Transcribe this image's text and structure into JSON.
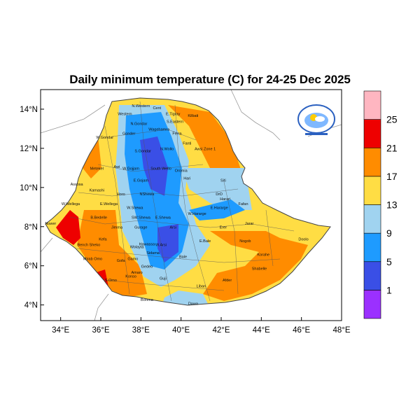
{
  "title": "Daily minimum temperature (C) for 24-25 Dec 2025",
  "map": {
    "lon_range": [
      33,
      48
    ],
    "lat_range": [
      3.2,
      15.0
    ],
    "x_ticks": [
      "34°E",
      "36°E",
      "38°E",
      "40°E",
      "42°E",
      "44°E",
      "46°E",
      "48°E"
    ],
    "y_ticks": [
      "14°N",
      "12°N",
      "10°N",
      "8°N",
      "6°N",
      "4°N"
    ]
  },
  "colorbar": {
    "labels": [
      "25",
      "21",
      "17",
      "13",
      "9",
      "5",
      "1"
    ],
    "colors": [
      "#9b30ff",
      "#3a4fe6",
      "#1e9bff",
      "#a0d3f0",
      "#ffdd44",
      "#ff8c00",
      "#ee0000",
      "#ffb6c1"
    ]
  },
  "regions": [
    {
      "name": "Western",
      "lon": 37.2,
      "lat": 13.7
    },
    {
      "name": "N.Western",
      "lon": 38.0,
      "lat": 14.1
    },
    {
      "name": "Cent",
      "lon": 38.8,
      "lat": 14.0
    },
    {
      "name": "E.Tigray",
      "lon": 39.6,
      "lat": 13.7
    },
    {
      "name": "S.Eastern",
      "lon": 39.7,
      "lat": 13.3
    },
    {
      "name": "N.Gondar",
      "lon": 37.9,
      "lat": 13.2
    },
    {
      "name": "Kilbati",
      "lon": 40.6,
      "lat": 13.6
    },
    {
      "name": "W.Gondar",
      "lon": 36.2,
      "lat": 12.5
    },
    {
      "name": "Gonder",
      "lon": 37.4,
      "lat": 12.7
    },
    {
      "name": "Wagehamra",
      "lon": 38.9,
      "lat": 12.9
    },
    {
      "name": "Ferra",
      "lon": 39.8,
      "lat": 12.7
    },
    {
      "name": "Fanti",
      "lon": 40.3,
      "lat": 12.2
    },
    {
      "name": "S.Gondar",
      "lon": 38.1,
      "lat": 11.8
    },
    {
      "name": "N.Wollo",
      "lon": 39.3,
      "lat": 11.9
    },
    {
      "name": "Awsi Zone 1",
      "lon": 41.2,
      "lat": 11.9
    },
    {
      "name": "Metekel",
      "lon": 35.8,
      "lat": 10.9
    },
    {
      "name": "Awi",
      "lon": 36.8,
      "lat": 11.0
    },
    {
      "name": "W.Gojjam",
      "lon": 37.5,
      "lat": 10.9
    },
    {
      "name": "South Wello",
      "lon": 39.0,
      "lat": 10.9
    },
    {
      "name": "Oromia",
      "lon": 40.0,
      "lat": 10.8
    },
    {
      "name": "E.Gojam",
      "lon": 38.0,
      "lat": 10.3
    },
    {
      "name": "Hari",
      "lon": 40.3,
      "lat": 10.4
    },
    {
      "name": "Siti",
      "lon": 42.1,
      "lat": 10.3
    },
    {
      "name": "Assosa",
      "lon": 34.8,
      "lat": 10.1
    },
    {
      "name": "Kamashi",
      "lon": 35.8,
      "lat": 9.8
    },
    {
      "name": "Horo",
      "lon": 37.0,
      "lat": 9.6
    },
    {
      "name": "NShewa",
      "lon": 38.3,
      "lat": 9.6
    },
    {
      "name": "DrD",
      "lon": 41.9,
      "lat": 9.6
    },
    {
      "name": "W.Wellega",
      "lon": 34.5,
      "lat": 9.1
    },
    {
      "name": "E.Wellega",
      "lon": 36.4,
      "lat": 9.1
    },
    {
      "name": "Fafan",
      "lon": 43.1,
      "lat": 9.1
    },
    {
      "name": "E.Hararge",
      "lon": 41.9,
      "lat": 8.9
    },
    {
      "name": "W.Hararge",
      "lon": 40.8,
      "lat": 8.6
    },
    {
      "name": "Harari",
      "lon": 42.2,
      "lat": 9.35
    },
    {
      "name": "W.Shewa",
      "lon": 37.7,
      "lat": 8.9
    },
    {
      "name": "B.Bedelle",
      "lon": 35.9,
      "lat": 8.4
    },
    {
      "name": "SW.Shewa",
      "lon": 38.0,
      "lat": 8.4
    },
    {
      "name": "E.Shewa",
      "lon": 39.1,
      "lat": 8.4
    },
    {
      "name": "Arsi",
      "lon": 39.6,
      "lat": 7.9
    },
    {
      "name": "Jimma",
      "lon": 36.8,
      "lat": 7.9
    },
    {
      "name": "Gurage",
      "lon": 38.0,
      "lat": 7.9
    },
    {
      "name": "Erer",
      "lon": 42.1,
      "lat": 7.9
    },
    {
      "name": "Jarar",
      "lon": 43.4,
      "lat": 8.1
    },
    {
      "name": "Kefa",
      "lon": 36.1,
      "lat": 7.3
    },
    {
      "name": "Bench Sheko",
      "lon": 35.4,
      "lat": 7.0
    },
    {
      "name": "Hawassa",
      "lon": 38.3,
      "lat": 7.05
    },
    {
      "name": "Wolayta",
      "lon": 37.8,
      "lat": 6.9
    },
    {
      "name": "W.Arsi",
      "lon": 39.0,
      "lat": 7.0
    },
    {
      "name": "E.Bale",
      "lon": 41.2,
      "lat": 7.2
    },
    {
      "name": "Nogob",
      "lon": 43.2,
      "lat": 7.2
    },
    {
      "name": "Doolo",
      "lon": 46.1,
      "lat": 7.3
    },
    {
      "name": "Sidama",
      "lon": 38.6,
      "lat": 6.6
    },
    {
      "name": "Mirab Omo",
      "lon": 35.6,
      "lat": 6.3
    },
    {
      "name": "Gofa",
      "lon": 37.0,
      "lat": 6.2
    },
    {
      "name": "Gamo",
      "lon": 37.6,
      "lat": 6.3
    },
    {
      "name": "Bale",
      "lon": 40.1,
      "lat": 6.4
    },
    {
      "name": "Korahe",
      "lon": 44.1,
      "lat": 6.5
    },
    {
      "name": "Gedeo",
      "lon": 38.3,
      "lat": 5.9
    },
    {
      "name": "Amaro",
      "lon": 37.8,
      "lat": 5.6
    },
    {
      "name": "Shabelle",
      "lon": 43.9,
      "lat": 5.8
    },
    {
      "name": "Konso",
      "lon": 37.5,
      "lat": 5.4
    },
    {
      "name": "Guji",
      "lon": 39.1,
      "lat": 5.3
    },
    {
      "name": "S.Omo",
      "lon": 36.5,
      "lat": 5.2
    },
    {
      "name": "Afder",
      "lon": 42.3,
      "lat": 5.2
    },
    {
      "name": "Liban",
      "lon": 41.0,
      "lat": 4.9
    },
    {
      "name": "Nuwer",
      "lon": 33.5,
      "lat": 8.1
    },
    {
      "name": "Borena",
      "lon": 38.3,
      "lat": 4.2
    },
    {
      "name": "Dawa",
      "lon": 40.6,
      "lat": 4.0
    }
  ]
}
